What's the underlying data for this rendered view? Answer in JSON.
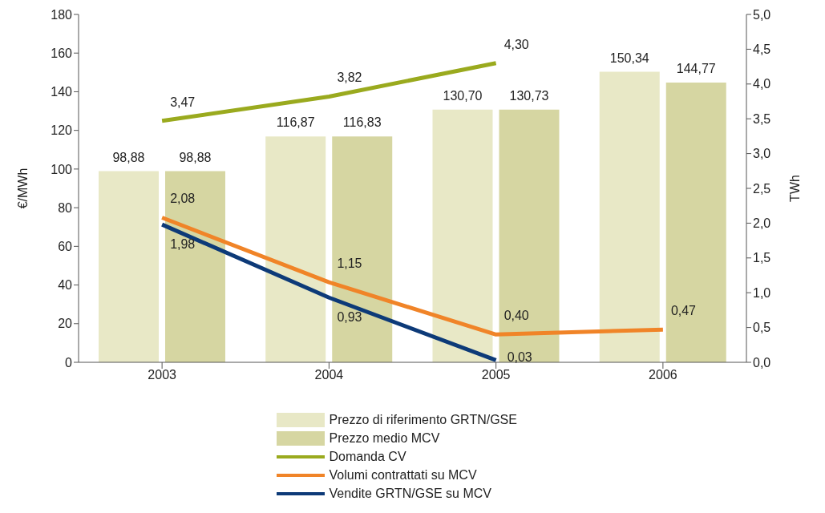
{
  "chart_data": {
    "type": "bar",
    "categories": [
      "2003",
      "2004",
      "2005",
      "2006"
    ],
    "ylabel": "€/MWh",
    "y2label": "TWh",
    "ylim": [
      0,
      180
    ],
    "yticks": [
      0,
      20,
      40,
      60,
      80,
      100,
      120,
      140,
      160,
      180
    ],
    "y2lim": [
      0,
      5
    ],
    "y2ticks": [
      {
        "value": 0,
        "label": "0,0"
      },
      {
        "value": 0.5,
        "label": "0,5"
      },
      {
        "value": 1,
        "label": "1,0"
      },
      {
        "value": 1.5,
        "label": "1,5"
      },
      {
        "value": 2,
        "label": "2,0"
      },
      {
        "value": 2.5,
        "label": "2,5"
      },
      {
        "value": 3,
        "label": "3,0"
      },
      {
        "value": 3.5,
        "label": "3,5"
      },
      {
        "value": 4,
        "label": "4,0"
      },
      {
        "value": 4.5,
        "label": "4,5"
      },
      {
        "value": 5,
        "label": "5,0"
      }
    ],
    "grid": false,
    "legend": "bottom",
    "marker": "none",
    "series": [
      {
        "name": "Prezzo di riferimento GRTN/GSE",
        "color": "#e8e8c6",
        "values": [
          98.88,
          116.87,
          130.7,
          150.34
        ],
        "value_labels": [
          "98,88",
          "116,87",
          "130,70",
          "150,34"
        ]
      },
      {
        "name": "Prezzo medio MCV",
        "color": "#d6d6a2",
        "values": [
          98.88,
          116.83,
          130.73,
          144.77
        ],
        "value_labels": [
          "98,88",
          "116,83",
          "130,73",
          "144,77"
        ]
      },
      {
        "name": "Domanda CV",
        "type": "line",
        "axis": "y2",
        "color": "#9aaa1e",
        "values": [
          3.47,
          3.82,
          4.3,
          null
        ],
        "value_labels": [
          "3,47",
          "3,82",
          "4,30",
          null
        ]
      },
      {
        "name": "Volumi contrattati su MCV",
        "type": "line",
        "axis": "y2",
        "color": "#f08428",
        "values": [
          2.08,
          1.15,
          0.4,
          0.47
        ],
        "value_labels": [
          "2,08",
          "1,15",
          "0,40",
          "0,47"
        ]
      },
      {
        "name": "Vendite GRTN/GSE su MCV",
        "type": "line",
        "axis": "y2",
        "color": "#0d3a78",
        "values": [
          1.98,
          0.93,
          0.03,
          null
        ],
        "value_labels": [
          "1,98",
          "0,93",
          "0,03",
          null
        ]
      }
    ]
  }
}
